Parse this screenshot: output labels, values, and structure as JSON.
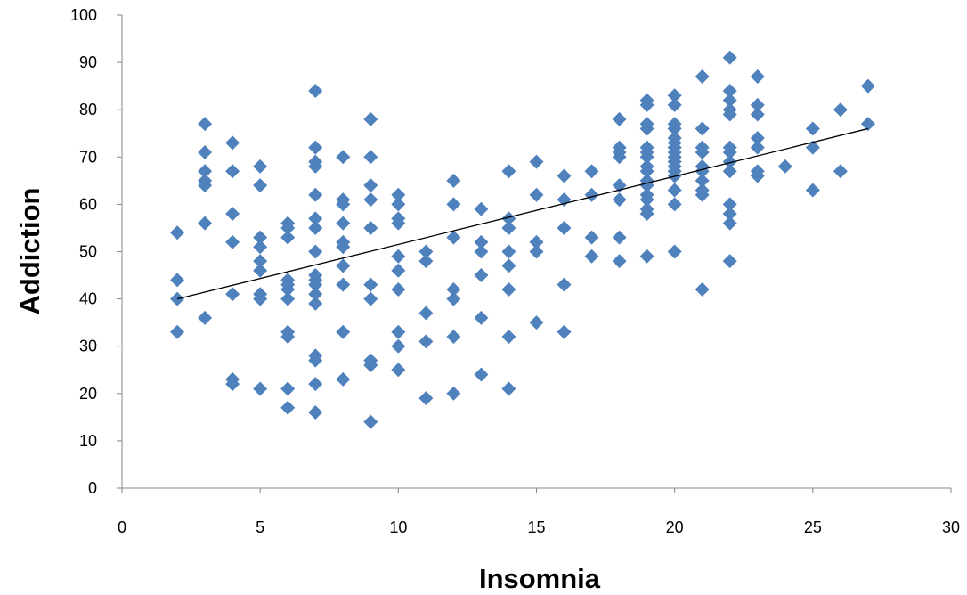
{
  "chart_data": {
    "type": "scatter",
    "title": "",
    "xlabel": "Insomnia",
    "ylabel": "Addiction",
    "xlim": [
      0,
      30
    ],
    "ylim": [
      0,
      100
    ],
    "x_ticks": [
      "0",
      "5",
      "10",
      "15",
      "20",
      "25",
      "30"
    ],
    "y_ticks": [
      "0",
      "10",
      "20",
      "30",
      "40",
      "50",
      "60",
      "70",
      "80",
      "90",
      "100"
    ],
    "grid": false,
    "legend": "none",
    "marker": "diamond",
    "marker_color": "#4F81BD",
    "trendline": {
      "type": "linear",
      "color": "#000000",
      "points": [
        [
          2,
          40
        ],
        [
          27,
          76
        ]
      ]
    },
    "points": [
      [
        2,
        54
      ],
      [
        2,
        44
      ],
      [
        2,
        40
      ],
      [
        2,
        33
      ],
      [
        3,
        77
      ],
      [
        3,
        71
      ],
      [
        3,
        67
      ],
      [
        3,
        65
      ],
      [
        3,
        64
      ],
      [
        3,
        56
      ],
      [
        3,
        36
      ],
      [
        4,
        73
      ],
      [
        4,
        67
      ],
      [
        4,
        58
      ],
      [
        4,
        52
      ],
      [
        4,
        41
      ],
      [
        4,
        23
      ],
      [
        4,
        22
      ],
      [
        5,
        68
      ],
      [
        5,
        64
      ],
      [
        5,
        53
      ],
      [
        5,
        51
      ],
      [
        5,
        48
      ],
      [
        5,
        46
      ],
      [
        5,
        41
      ],
      [
        5,
        40
      ],
      [
        5,
        21
      ],
      [
        6,
        56
      ],
      [
        6,
        55
      ],
      [
        6,
        53
      ],
      [
        6,
        44
      ],
      [
        6,
        43
      ],
      [
        6,
        42
      ],
      [
        6,
        40
      ],
      [
        6,
        33
      ],
      [
        6,
        32
      ],
      [
        6,
        21
      ],
      [
        6,
        17
      ],
      [
        7,
        84
      ],
      [
        7,
        72
      ],
      [
        7,
        69
      ],
      [
        7,
        68
      ],
      [
        7,
        62
      ],
      [
        7,
        57
      ],
      [
        7,
        55
      ],
      [
        7,
        50
      ],
      [
        7,
        45
      ],
      [
        7,
        44
      ],
      [
        7,
        43
      ],
      [
        7,
        41
      ],
      [
        7,
        39
      ],
      [
        7,
        28
      ],
      [
        7,
        27
      ],
      [
        7,
        22
      ],
      [
        7,
        16
      ],
      [
        8,
        70
      ],
      [
        8,
        61
      ],
      [
        8,
        60
      ],
      [
        8,
        56
      ],
      [
        8,
        52
      ],
      [
        8,
        51
      ],
      [
        8,
        47
      ],
      [
        8,
        43
      ],
      [
        8,
        33
      ],
      [
        8,
        23
      ],
      [
        9,
        78
      ],
      [
        9,
        70
      ],
      [
        9,
        64
      ],
      [
        9,
        61
      ],
      [
        9,
        55
      ],
      [
        9,
        43
      ],
      [
        9,
        40
      ],
      [
        9,
        27
      ],
      [
        9,
        26
      ],
      [
        9,
        14
      ],
      [
        10,
        62
      ],
      [
        10,
        60
      ],
      [
        10,
        57
      ],
      [
        10,
        56
      ],
      [
        10,
        49
      ],
      [
        10,
        46
      ],
      [
        10,
        42
      ],
      [
        10,
        33
      ],
      [
        10,
        30
      ],
      [
        10,
        25
      ],
      [
        11,
        50
      ],
      [
        11,
        48
      ],
      [
        11,
        37
      ],
      [
        11,
        31
      ],
      [
        11,
        19
      ],
      [
        12,
        65
      ],
      [
        12,
        60
      ],
      [
        12,
        53
      ],
      [
        12,
        42
      ],
      [
        12,
        40
      ],
      [
        12,
        32
      ],
      [
        12,
        20
      ],
      [
        13,
        59
      ],
      [
        13,
        52
      ],
      [
        13,
        50
      ],
      [
        13,
        45
      ],
      [
        13,
        36
      ],
      [
        13,
        24
      ],
      [
        14,
        67
      ],
      [
        14,
        57
      ],
      [
        14,
        55
      ],
      [
        14,
        50
      ],
      [
        14,
        47
      ],
      [
        14,
        42
      ],
      [
        14,
        32
      ],
      [
        14,
        21
      ],
      [
        15,
        69
      ],
      [
        15,
        62
      ],
      [
        15,
        52
      ],
      [
        15,
        50
      ],
      [
        15,
        35
      ],
      [
        16,
        66
      ],
      [
        16,
        61
      ],
      [
        16,
        55
      ],
      [
        16,
        43
      ],
      [
        16,
        33
      ],
      [
        17,
        67
      ],
      [
        17,
        62
      ],
      [
        17,
        53
      ],
      [
        17,
        49
      ],
      [
        18,
        78
      ],
      [
        18,
        72
      ],
      [
        18,
        71
      ],
      [
        18,
        70
      ],
      [
        18,
        64
      ],
      [
        18,
        61
      ],
      [
        18,
        53
      ],
      [
        18,
        48
      ],
      [
        19,
        82
      ],
      [
        19,
        81
      ],
      [
        19,
        77
      ],
      [
        19,
        76
      ],
      [
        19,
        72
      ],
      [
        19,
        71
      ],
      [
        19,
        70
      ],
      [
        19,
        68
      ],
      [
        19,
        67
      ],
      [
        19,
        65
      ],
      [
        19,
        64
      ],
      [
        19,
        62
      ],
      [
        19,
        61
      ],
      [
        19,
        59
      ],
      [
        19,
        58
      ],
      [
        19,
        49
      ],
      [
        20,
        83
      ],
      [
        20,
        81
      ],
      [
        20,
        77
      ],
      [
        20,
        76
      ],
      [
        20,
        74
      ],
      [
        20,
        73
      ],
      [
        20,
        72
      ],
      [
        20,
        71
      ],
      [
        20,
        70
      ],
      [
        20,
        69
      ],
      [
        20,
        68
      ],
      [
        20,
        67
      ],
      [
        20,
        66
      ],
      [
        20,
        63
      ],
      [
        20,
        60
      ],
      [
        20,
        50
      ],
      [
        21,
        87
      ],
      [
        21,
        76
      ],
      [
        21,
        72
      ],
      [
        21,
        71
      ],
      [
        21,
        68
      ],
      [
        21,
        67
      ],
      [
        21,
        65
      ],
      [
        21,
        63
      ],
      [
        21,
        62
      ],
      [
        21,
        42
      ],
      [
        22,
        91
      ],
      [
        22,
        84
      ],
      [
        22,
        82
      ],
      [
        22,
        80
      ],
      [
        22,
        79
      ],
      [
        22,
        72
      ],
      [
        22,
        71
      ],
      [
        22,
        69
      ],
      [
        22,
        67
      ],
      [
        22,
        60
      ],
      [
        22,
        58
      ],
      [
        22,
        56
      ],
      [
        22,
        48
      ],
      [
        23,
        87
      ],
      [
        23,
        81
      ],
      [
        23,
        79
      ],
      [
        23,
        74
      ],
      [
        23,
        72
      ],
      [
        23,
        67
      ],
      [
        23,
        66
      ],
      [
        24,
        68
      ],
      [
        25,
        76
      ],
      [
        25,
        72
      ],
      [
        25,
        63
      ],
      [
        26,
        80
      ],
      [
        26,
        67
      ],
      [
        27,
        85
      ],
      [
        27,
        77
      ]
    ]
  }
}
